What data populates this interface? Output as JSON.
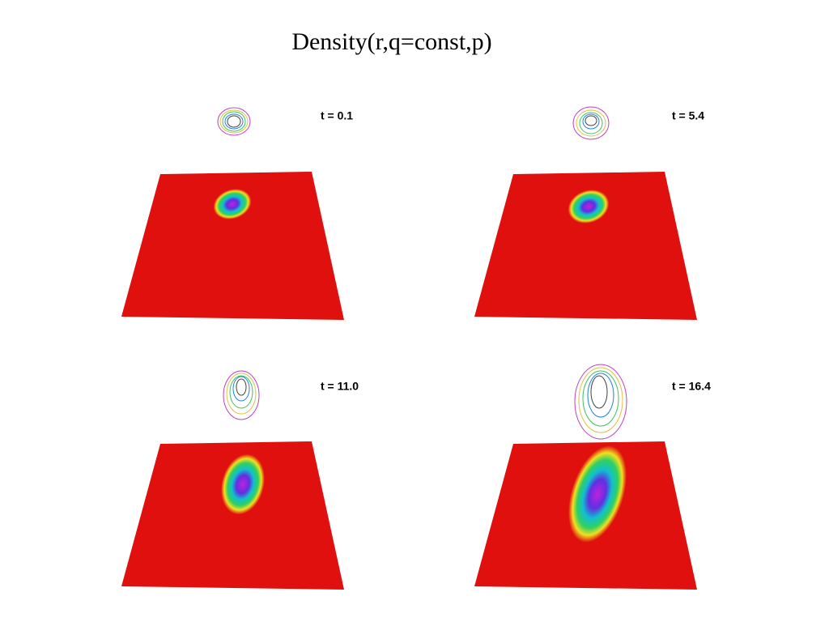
{
  "title": "Density(r,q=const,p)",
  "panels": [
    {
      "label": "t = 0.1"
    },
    {
      "label": "t = 5.4"
    },
    {
      "label": "t = 11.0"
    },
    {
      "label": "t = 16.4"
    }
  ]
}
